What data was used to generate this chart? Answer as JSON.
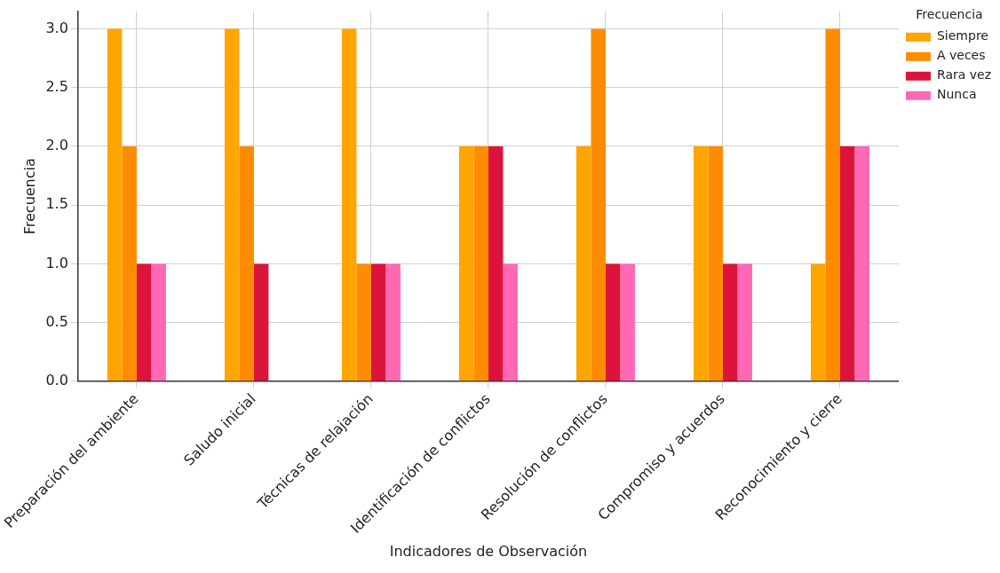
{
  "chart_data": {
    "type": "bar",
    "xlabel": "Indicadores de Observación",
    "ylabel": "Frecuencia",
    "legend_title": "Frecuencia",
    "categories": [
      "Preparación del ambiente",
      "Saludo inicial",
      "Técnicas de relajación",
      "Identificación de conflictos",
      "Resolución de conflictos",
      "Compromiso y acuerdos",
      "Reconocimiento y cierre"
    ],
    "series": [
      {
        "name": "Siempre",
        "color": "#ffa500",
        "values": [
          3,
          3,
          3,
          2,
          2,
          2,
          1
        ]
      },
      {
        "name": "A veces",
        "color": "#ff8c00",
        "values": [
          2,
          2,
          1,
          2,
          3,
          2,
          3
        ]
      },
      {
        "name": "Rara vez",
        "color": "#dc143c",
        "values": [
          1,
          1,
          1,
          2,
          1,
          1,
          2
        ]
      },
      {
        "name": "Nunca",
        "color": "#ff69b4",
        "values": [
          1,
          0,
          1,
          1,
          1,
          1,
          2
        ]
      }
    ],
    "ylim": [
      0,
      3.15
    ],
    "yticks": [
      {
        "value": 0,
        "label": "0.0"
      },
      {
        "value": 0.5,
        "label": "0.5"
      },
      {
        "value": 1,
        "label": "1.0"
      },
      {
        "value": 1.5,
        "label": "1.5"
      },
      {
        "value": 2,
        "label": "2.0"
      },
      {
        "value": 2.5,
        "label": "2.5"
      },
      {
        "value": 3,
        "label": "3.0"
      }
    ],
    "grid": true,
    "legend": "top right"
  }
}
